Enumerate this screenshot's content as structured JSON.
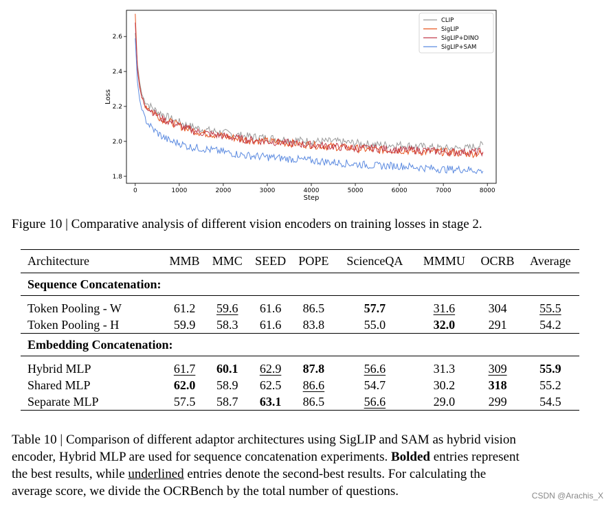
{
  "chart_data": {
    "type": "line",
    "title": "",
    "xlabel": "Step",
    "ylabel": "Loss",
    "xlim": [
      -200,
      8200
    ],
    "ylim": [
      1.76,
      2.75
    ],
    "xticks": [
      0,
      1000,
      2000,
      3000,
      4000,
      5000,
      6000,
      7000,
      8000
    ],
    "yticks": [
      1.8,
      2.0,
      2.2,
      2.4,
      2.6
    ],
    "ytick_labels": [
      "1.8",
      "2.0",
      "2.2",
      "2.4",
      "2.6"
    ],
    "legend_position": "top-right",
    "series": [
      {
        "name": "CLIP",
        "color": "#999999",
        "x": [
          0,
          50,
          100,
          150,
          200,
          300,
          400,
          500,
          600,
          800,
          1000,
          1200,
          1500,
          2000,
          2500,
          3000,
          3500,
          4000,
          4500,
          5000,
          5500,
          6000,
          6500,
          7000,
          7500,
          7900
        ],
        "y": [
          2.62,
          2.44,
          2.34,
          2.27,
          2.24,
          2.21,
          2.19,
          2.17,
          2.16,
          2.13,
          2.11,
          2.09,
          2.07,
          2.05,
          2.03,
          2.02,
          2.01,
          2.0,
          2.0,
          1.99,
          1.98,
          1.98,
          1.97,
          1.96,
          1.96,
          1.98
        ]
      },
      {
        "name": "SigLIP",
        "color": "#e8541e",
        "x": [
          0,
          50,
          100,
          150,
          200,
          300,
          400,
          500,
          600,
          800,
          1000,
          1200,
          1500,
          2000,
          2500,
          3000,
          3500,
          4000,
          4500,
          5000,
          5500,
          6000,
          6500,
          7000,
          7500,
          7900
        ],
        "y": [
          2.73,
          2.42,
          2.32,
          2.25,
          2.22,
          2.19,
          2.17,
          2.15,
          2.13,
          2.11,
          2.09,
          2.07,
          2.05,
          2.03,
          2.01,
          2.0,
          1.99,
          1.98,
          1.97,
          1.96,
          1.95,
          1.95,
          1.94,
          1.94,
          1.93,
          1.93
        ]
      },
      {
        "name": "SigLIP+DINO",
        "color": "#c03a4a",
        "x": [
          0,
          50,
          100,
          150,
          200,
          300,
          400,
          500,
          600,
          800,
          1000,
          1200,
          1500,
          2000,
          2500,
          3000,
          3500,
          4000,
          4500,
          5000,
          5500,
          6000,
          6500,
          7000,
          7500,
          7900
        ],
        "y": [
          2.68,
          2.41,
          2.31,
          2.25,
          2.22,
          2.19,
          2.17,
          2.15,
          2.13,
          2.11,
          2.09,
          2.07,
          2.05,
          2.03,
          2.01,
          2.0,
          1.99,
          1.98,
          1.97,
          1.96,
          1.96,
          1.95,
          1.95,
          1.94,
          1.94,
          1.94
        ]
      },
      {
        "name": "SigLIP+SAM",
        "color": "#5b8ae0",
        "x": [
          0,
          50,
          100,
          150,
          200,
          300,
          400,
          500,
          600,
          800,
          1000,
          1200,
          1500,
          2000,
          2500,
          3000,
          3500,
          4000,
          4500,
          5000,
          5500,
          6000,
          6500,
          7000,
          7500,
          7900
        ],
        "y": [
          2.59,
          2.34,
          2.24,
          2.18,
          2.14,
          2.1,
          2.07,
          2.05,
          2.03,
          2.0,
          1.99,
          1.97,
          1.96,
          1.94,
          1.92,
          1.91,
          1.9,
          1.89,
          1.88,
          1.87,
          1.86,
          1.86,
          1.85,
          1.84,
          1.84,
          1.83
        ]
      }
    ]
  },
  "figure_caption": "Figure 10 | Comparative analysis of different vision encoders on training losses in stage 2.",
  "table": {
    "headers": [
      "Architecture",
      "MMB",
      "MMC",
      "SEED",
      "POPE",
      "ScienceQA",
      "MMMU",
      "OCRB",
      "Average"
    ],
    "groups": [
      {
        "label": "Sequence Concatenation:",
        "rows": [
          [
            "Token Pooling - W",
            "61.2",
            "59.6",
            "61.6",
            "86.5",
            "57.7",
            "31.6",
            "304",
            "55.5"
          ],
          [
            "Token Pooling - H",
            "59.9",
            "58.3",
            "61.6",
            "83.8",
            "55.0",
            "32.0",
            "291",
            "54.2"
          ]
        ]
      },
      {
        "label": "Embedding Concatenation:",
        "rows": [
          [
            "Hybrid MLP",
            "61.7",
            "60.1",
            "62.9",
            "87.8",
            "56.6",
            "31.3",
            "309",
            "55.9"
          ],
          [
            "Shared MLP",
            "62.0",
            "58.9",
            "62.5",
            "86.6",
            "54.7",
            "30.2",
            "318",
            "55.2"
          ],
          [
            "Separate MLP",
            "57.5",
            "58.7",
            "63.1",
            "86.5",
            "56.6",
            "29.0",
            "299",
            "54.5"
          ]
        ]
      }
    ]
  },
  "table_caption": {
    "line1": "Table 10 | Comparison of different adaptor architectures using SigLIP and SAM as hybrid vision",
    "line2_a": "encoder, Hybrid MLP are used for sequence concatenation experiments. ",
    "line2_b": "Bolded",
    "line2_c": " entries represent",
    "line3_a": "the best results, while ",
    "line3_b": "underlined",
    "line3_c": " entries denote the second-best results. For calculating the",
    "line4": "average score, we divide the OCRBench by the total number of questions."
  },
  "watermark": "CSDN @Arachis_X"
}
